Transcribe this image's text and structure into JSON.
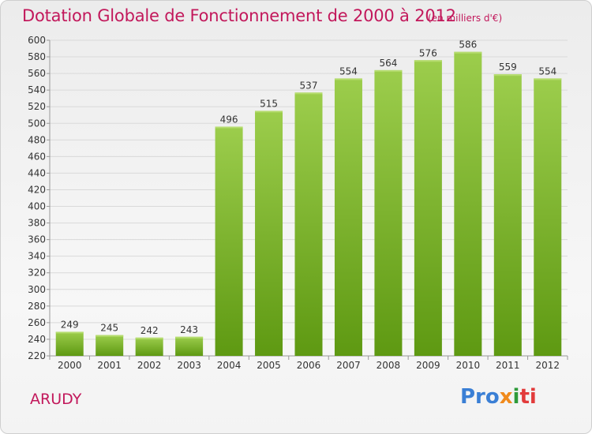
{
  "title": "Dotation Globale de Fonctionnement de 2000 à 2012",
  "unit_note": "(en milliers d'€)",
  "town": "ARUDY",
  "logo": {
    "p1": "Pro",
    "p2": "x",
    "p3": "i",
    "p4": "ti"
  },
  "colors": {
    "bar_top": "#9ccd4c",
    "bar_bottom": "#5e9912",
    "title": "#c2185b"
  },
  "chart_data": {
    "type": "bar",
    "title": "Dotation Globale de Fonctionnement de 2000 à 2012",
    "xlabel": "",
    "ylabel": "",
    "categories": [
      "2000",
      "2001",
      "2002",
      "2003",
      "2004",
      "2005",
      "2006",
      "2007",
      "2008",
      "2009",
      "2010",
      "2011",
      "2012"
    ],
    "values": [
      249,
      245,
      242,
      243,
      496,
      515,
      537,
      554,
      564,
      576,
      586,
      559,
      554
    ],
    "ylim": [
      220,
      600
    ],
    "yticks": [
      220,
      240,
      260,
      280,
      300,
      320,
      340,
      360,
      380,
      400,
      420,
      440,
      460,
      480,
      500,
      520,
      540,
      560,
      580,
      600
    ],
    "grid": true,
    "legend": "none"
  }
}
